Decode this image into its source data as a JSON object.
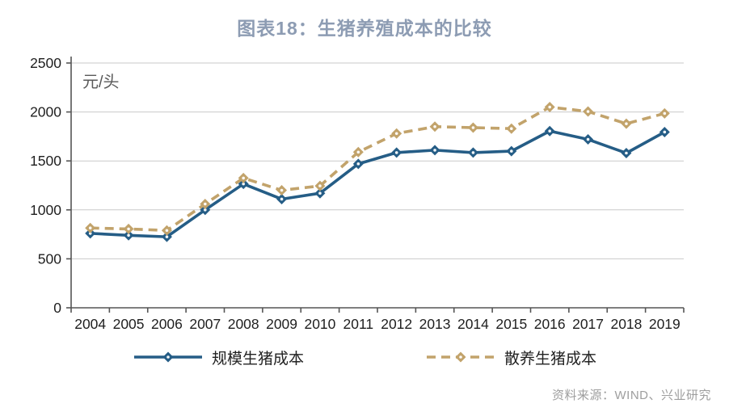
{
  "page": {
    "title": "图表18：生猪养殖成本的比较",
    "source": "资料来源：WIND、兴业研究"
  },
  "chart_data": {
    "type": "line",
    "title": "图表18：生猪养殖成本的比较",
    "unit_label": "元/头",
    "xlabel": "",
    "ylabel": "元/头",
    "categories": [
      "2004",
      "2005",
      "2006",
      "2007",
      "2008",
      "2009",
      "2010",
      "2011",
      "2012",
      "2013",
      "2014",
      "2015",
      "2016",
      "2017",
      "2018",
      "2019"
    ],
    "series": [
      {
        "name": "规模生猪成本",
        "color": "#255d86",
        "line_style": "solid",
        "marker": "diamond",
        "values": [
          760,
          740,
          725,
          1000,
          1265,
          1110,
          1170,
          1470,
          1585,
          1610,
          1585,
          1600,
          1805,
          1720,
          1580,
          1795
        ]
      },
      {
        "name": "散养生猪成本",
        "color": "#c2a36b",
        "line_style": "dashed",
        "marker": "diamond",
        "values": [
          815,
          805,
          790,
          1060,
          1325,
          1200,
          1245,
          1590,
          1780,
          1850,
          1840,
          1830,
          2050,
          2005,
          1880,
          1985
        ]
      }
    ],
    "ylim": [
      0,
      2500
    ],
    "yticks": [
      0,
      500,
      1000,
      1500,
      2000,
      2500
    ],
    "grid": "horizontal",
    "legend_position": "bottom"
  },
  "colors": {
    "title": "#8d9cb3",
    "axis": "#555555",
    "gridline": "#c9c9c9",
    "tick_label": "#1f1f1f",
    "source_text": "#9e9e9e",
    "background": "#ffffff"
  }
}
